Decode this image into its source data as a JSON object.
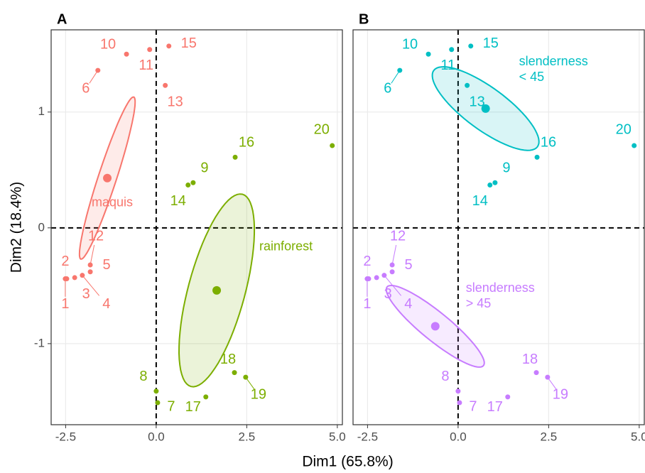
{
  "chart_data": [
    {
      "type": "scatter",
      "panel_label": "A",
      "xlabel": "Dim1 (65.8%)",
      "ylabel": "Dim2 (18.4%)",
      "xlim": [
        -2.9,
        5.14
      ],
      "ylim": [
        -1.7,
        1.71
      ],
      "xticks": [
        {
          "value": -2.5,
          "label": "-2.5"
        },
        {
          "value": 0,
          "label": "0.0"
        },
        2.5,
        {
          "value": 5,
          "label": "5.0"
        }
      ],
      "yticks": [
        -1,
        0,
        1
      ],
      "ytick_labels": true,
      "grid": true,
      "reflines": {
        "x": 0,
        "y": 0
      },
      "series": [
        {
          "name": "maquis",
          "color": "#F8766D",
          "labels": [
            "1",
            "2",
            "3",
            "4",
            "5",
            "12",
            "6",
            "10",
            "11",
            "15",
            "13"
          ],
          "x": [
            -2.51,
            -2.47,
            -2.25,
            -2.04,
            -1.82,
            -1.82,
            -1.61,
            -0.82,
            -0.18,
            0.35,
            0.25
          ],
          "y": [
            -0.44,
            -0.44,
            -0.43,
            -0.41,
            -0.38,
            -0.32,
            1.36,
            1.5,
            1.54,
            1.57,
            1.23
          ],
          "centroid": [
            -1.35,
            0.43
          ],
          "ellipse": {
            "major": [
              0.73,
              0.7
            ],
            "minor": [
              0.24,
              -0.024
            ]
          }
        },
        {
          "name": "rainforest",
          "color": "#7CAE00",
          "labels": [
            "16",
            "9",
            "14",
            "20",
            "18",
            "19",
            "8",
            "7",
            "17"
          ],
          "x": [
            2.18,
            1.02,
            0.88,
            4.86,
            2.16,
            2.47,
            0.0,
            0.04,
            1.37
          ],
          "y": [
            0.61,
            0.39,
            0.37,
            0.71,
            -1.25,
            -1.29,
            -1.41,
            -1.51,
            -1.46
          ],
          "centroid": [
            1.67,
            -0.54
          ],
          "ellipse": {
            "major": [
              0.71,
              0.83
            ],
            "minor": [
              0.76,
              -0.062
            ]
          }
        }
      ]
    },
    {
      "type": "scatter",
      "panel_label": "B",
      "xlim": [
        -2.9,
        5.14
      ],
      "ylim": [
        -1.7,
        1.71
      ],
      "xticks": [
        {
          "value": -2.5,
          "label": "-2.5"
        },
        {
          "value": 0,
          "label": "0.0"
        },
        2.5,
        {
          "value": 5,
          "label": "5.0"
        }
      ],
      "yticks": [
        -1,
        0,
        1
      ],
      "ytick_labels": false,
      "grid": true,
      "reflines": {
        "x": 0,
        "y": 0
      },
      "series": [
        {
          "name": "slenderness < 45",
          "color": "#00BFC4",
          "labels": [
            "6",
            "10",
            "11",
            "15",
            "13",
            "16",
            "9",
            "14",
            "20"
          ],
          "x": [
            -1.61,
            -0.82,
            -0.18,
            0.35,
            0.25,
            2.18,
            1.02,
            0.88,
            4.86
          ],
          "y": [
            1.36,
            1.5,
            1.54,
            1.57,
            1.23,
            0.61,
            0.39,
            0.37,
            0.71
          ],
          "centroid": [
            0.76,
            1.03
          ],
          "ellipse": {
            "major": [
              -1.43,
              0.33
            ],
            "minor": [
              0.35,
              0.146
            ]
          }
        },
        {
          "name": "slenderness > 45",
          "color": "#C77CFF",
          "labels": [
            "1",
            "2",
            "3",
            "4",
            "5",
            "12",
            "18",
            "19",
            "8",
            "7",
            "17"
          ],
          "x": [
            -2.51,
            -2.47,
            -2.25,
            -2.04,
            -1.82,
            -1.82,
            2.16,
            2.47,
            0.0,
            0.04,
            1.37
          ],
          "y": [
            -0.44,
            -0.44,
            -0.43,
            -0.41,
            -0.38,
            -0.32,
            -1.25,
            -1.29,
            -1.41,
            -1.51,
            -1.46
          ],
          "centroid": [
            -0.63,
            -0.85
          ],
          "ellipse": {
            "major": [
              1.33,
              -0.34
            ],
            "minor": [
              -0.25,
              -0.094
            ]
          }
        }
      ]
    }
  ]
}
